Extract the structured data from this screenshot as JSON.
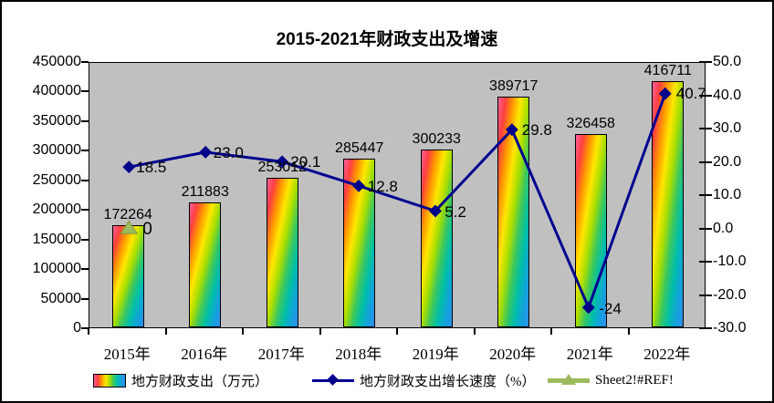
{
  "chart_data": {
    "type": "bar+line",
    "title": "2015-2021年财政支出及增速",
    "categories": [
      "2015年",
      "2016年",
      "2017年",
      "2018年",
      "2019年",
      "2020年",
      "2021年",
      "2022年"
    ],
    "series": [
      {
        "name": "地方财政支出（万元）",
        "type": "bar",
        "axis": "left",
        "values": [
          172264,
          211883,
          253012,
          285447,
          300233,
          389717,
          326458,
          416711
        ],
        "labels": [
          "172264",
          "211883",
          "253012",
          "285447",
          "300233",
          "389717",
          "326458",
          "416711"
        ]
      },
      {
        "name": "地方财政支出增长速度（%）",
        "type": "line",
        "axis": "right",
        "marker": "diamond",
        "values": [
          18.5,
          23.0,
          20.1,
          12.8,
          5.2,
          29.8,
          -24,
          40.7
        ],
        "labels": [
          "18.5",
          "23.0",
          "20.1",
          "12.8",
          "5.2",
          "29.8",
          "-24",
          "40.7"
        ]
      },
      {
        "name": "Sheet2!#REF!",
        "type": "line",
        "axis": "right",
        "marker": "triangle",
        "values": [
          0,
          null,
          null,
          null,
          null,
          null,
          null,
          null
        ],
        "labels": [
          "0",
          "",
          "",
          "",
          "",
          "",
          "",
          ""
        ]
      }
    ],
    "left_axis": {
      "min": 0,
      "max": 450000,
      "step": 50000,
      "ticks": [
        "450000",
        "400000",
        "350000",
        "300000",
        "250000",
        "200000",
        "150000",
        "100000",
        "50000",
        "0"
      ]
    },
    "right_axis": {
      "min": -30,
      "max": 50,
      "step": 10,
      "ticks": [
        "50.0",
        "40.0",
        "30.0",
        "20.0",
        "10.0",
        "0.0",
        "-10.0",
        "-20.0",
        "-30.0"
      ]
    },
    "legend_position": "bottom",
    "grid": false
  },
  "legend": {
    "items": [
      {
        "label": "地方财政支出（万元）",
        "marker": "rainbow-swatch"
      },
      {
        "label": "地方财政支出增长速度（%）",
        "marker": "navy-line-diamond"
      },
      {
        "label": "Sheet2!#REF!",
        "marker": "olive-line-triangle"
      }
    ]
  },
  "colors": {
    "plot_bg": "#C0C0C0",
    "axis": "#000000",
    "bar_border": "#000000",
    "bar_gradient": [
      "#ff609c",
      "#ff4040",
      "#ff9700",
      "#ffe700",
      "#aadf00",
      "#3cc85e",
      "#00bfa8",
      "#12a2dc",
      "#2f8fee"
    ],
    "line": "#000090",
    "marker": "#00008B",
    "triangle_fill": "#9DBB5E",
    "triangle_stroke": "#7E9A3F"
  }
}
